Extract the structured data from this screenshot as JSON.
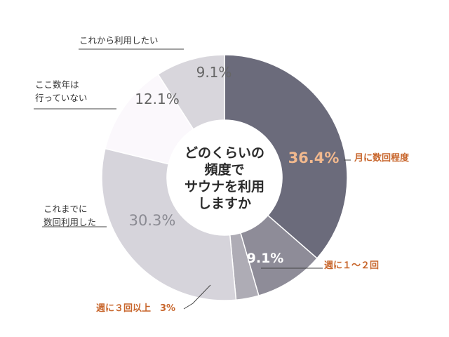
{
  "chart_data": {
    "type": "pie",
    "title": "どのくらいの頻度でサウナを利用しますか",
    "title_lines": [
      "どのくらいの",
      "頻度で",
      "サウナを利用",
      "しますか"
    ],
    "slices": [
      {
        "label": "月に数回程度",
        "label_lines": [
          "月に数回程度"
        ],
        "value": 36.4,
        "value_text": "36.4%",
        "color": "#6b6b7b",
        "value_color": "#f2b98e",
        "label_color": "#c8662c"
      },
      {
        "label": "週に１〜２回",
        "label_lines": [
          "週に１〜２回"
        ],
        "value": 9.1,
        "value_text": "9.1%",
        "color": "#8e8c98",
        "value_color": "#ffffff",
        "label_color": "#c8662c"
      },
      {
        "label": "週に３回以上",
        "label_lines": [
          "週に３回以上　3%"
        ],
        "value": 3.0,
        "value_text": "",
        "color": "#aeacb5",
        "value_color": "#ffffff",
        "label_color": "#c8662c"
      },
      {
        "label": "これまでに数回利用した",
        "label_lines": [
          "これまでに",
          "数回利用した"
        ],
        "value": 30.3,
        "value_text": "30.3%",
        "color": "#d6d4db",
        "value_color": "#8a8a92",
        "label_color": "#333333"
      },
      {
        "label": "ここ数年は行っていない",
        "label_lines": [
          "ここ数年は",
          "行っていない"
        ],
        "value": 12.1,
        "value_text": "12.1%",
        "color": "#fbf8fc",
        "value_color": "#666666",
        "label_color": "#333333"
      },
      {
        "label": "これから利用したい",
        "label_lines": [
          "これから利用したい"
        ],
        "value": 9.1,
        "value_text": "9.1%",
        "color": "#d8d6dc",
        "value_color": "#666666",
        "label_color": "#333333"
      }
    ]
  }
}
